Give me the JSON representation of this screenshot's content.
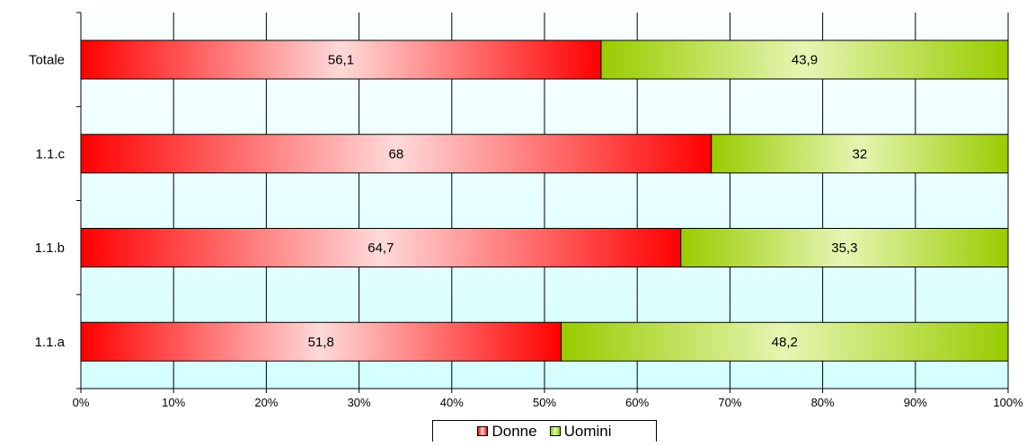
{
  "chart_data": {
    "type": "bar",
    "orientation": "horizontal",
    "stacked": "percent",
    "categories": [
      "Totale",
      "1.1.c",
      "1.1.b",
      "1.1.a"
    ],
    "series": [
      {
        "name": "Donne",
        "values": [
          56.1,
          68,
          64.7,
          51.8
        ],
        "labels": [
          "56,1",
          "68",
          "64,7",
          "51,8"
        ],
        "color": "#ff0000"
      },
      {
        "name": "Uomini",
        "values": [
          43.9,
          32,
          35.3,
          48.2
        ],
        "labels": [
          "43,9",
          "32",
          "35,3",
          "48,2"
        ],
        "color": "#99cc00"
      }
    ],
    "x_ticks": [
      "0%",
      "10%",
      "20%",
      "30%",
      "40%",
      "50%",
      "60%",
      "70%",
      "80%",
      "90%",
      "100%"
    ],
    "xlim": [
      0,
      100
    ],
    "grid": true,
    "legend_position": "bottom",
    "background_colors": [
      "#fbffff",
      "#d4ffff"
    ]
  }
}
